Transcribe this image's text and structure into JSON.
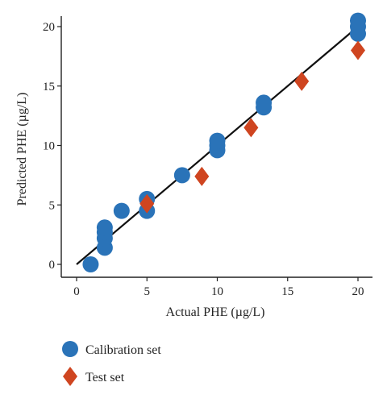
{
  "chart_data": {
    "type": "scatter",
    "xlabel": "Actual PHE (µg/L)",
    "ylabel": "Predicted PHE (µg/L)",
    "xlim": [
      -1,
      21
    ],
    "ylim": [
      -1,
      21
    ],
    "xticks": [
      0,
      5,
      10,
      15,
      20
    ],
    "yticks": [
      0,
      5,
      10,
      15,
      20
    ],
    "grid": false,
    "legend_position": "bottom-left",
    "series": [
      {
        "name": "Calibration set",
        "marker": "circle",
        "color": "#2a73b8",
        "points": [
          [
            1.0,
            0.0
          ],
          [
            2.0,
            1.4
          ],
          [
            2.0,
            2.2
          ],
          [
            2.0,
            2.7
          ],
          [
            2.0,
            3.1
          ],
          [
            3.2,
            4.5
          ],
          [
            5.0,
            4.5
          ],
          [
            5.0,
            5.5
          ],
          [
            7.5,
            7.5
          ],
          [
            10.0,
            9.6
          ],
          [
            10.0,
            10.0
          ],
          [
            10.0,
            10.4
          ],
          [
            13.3,
            13.2
          ],
          [
            13.3,
            13.6
          ],
          [
            20.0,
            19.4
          ],
          [
            20.0,
            20.0
          ],
          [
            20.0,
            20.5
          ]
        ]
      },
      {
        "name": "Test set",
        "marker": "diamond",
        "color": "#cf4520",
        "points": [
          [
            5.0,
            5.1
          ],
          [
            8.9,
            7.4
          ],
          [
            12.4,
            11.5
          ],
          [
            16.0,
            15.4
          ],
          [
            20.0,
            18.0
          ]
        ]
      }
    ],
    "fit_line": {
      "color": "#111111",
      "from": [
        0,
        0
      ],
      "to": [
        20,
        20
      ]
    }
  }
}
